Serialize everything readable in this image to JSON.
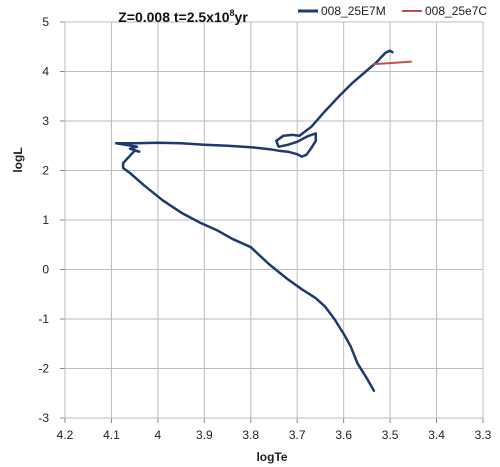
{
  "chart_data": {
    "type": "line",
    "title_parts": [
      "Z=0.008 t=2.5x10",
      "8",
      "yr"
    ],
    "xlabel": "logTe",
    "ylabel": "logL",
    "xlim": [
      4.2,
      3.3
    ],
    "ylim": [
      -3,
      5
    ],
    "x_ticks": [
      4.2,
      4.1,
      4.0,
      3.9,
      3.8,
      3.7,
      3.6,
      3.5,
      3.4,
      3.3
    ],
    "x_tick_labels": [
      "4.2",
      "4.1",
      "4",
      "3.9",
      "3.8",
      "3.7",
      "3.6",
      "3.5",
      "3.4",
      "3.3"
    ],
    "y_ticks": [
      -3,
      -2,
      -1,
      0,
      1,
      2,
      3,
      4,
      5
    ],
    "y_tick_labels": [
      "-3",
      "-2",
      "-1",
      "0",
      "1",
      "2",
      "3",
      "4",
      "5"
    ],
    "grid": true,
    "legend_position": "top-right",
    "series": [
      {
        "name": "008_25E7M",
        "color": "#1f3a6e",
        "x": [
          3.535,
          3.55,
          3.57,
          3.585,
          3.6,
          3.62,
          3.64,
          3.66,
          3.69,
          3.72,
          3.76,
          3.8,
          3.84,
          3.87,
          3.91,
          3.95,
          3.99,
          4.03,
          4.06,
          4.075,
          4.075,
          4.06,
          4.05,
          4.04,
          4.06,
          4.045,
          4.07,
          4.09,
          4.05,
          4.0,
          3.95,
          3.9,
          3.85,
          3.8,
          3.76,
          3.74,
          3.72,
          3.7,
          3.69,
          3.68,
          3.67,
          3.66,
          3.66,
          3.675,
          3.69,
          3.7,
          3.72,
          3.74,
          3.745,
          3.73,
          3.71,
          3.695,
          3.67,
          3.64,
          3.61,
          3.58,
          3.55,
          3.53,
          3.52,
          3.51,
          3.5,
          3.495
        ],
        "y": [
          -2.45,
          -2.2,
          -1.9,
          -1.55,
          -1.3,
          -1.0,
          -0.75,
          -0.58,
          -0.4,
          -0.2,
          0.1,
          0.45,
          0.62,
          0.78,
          0.95,
          1.15,
          1.4,
          1.7,
          1.95,
          2.05,
          2.15,
          2.3,
          2.4,
          2.38,
          2.44,
          2.48,
          2.52,
          2.55,
          2.55,
          2.56,
          2.55,
          2.52,
          2.5,
          2.47,
          2.43,
          2.4,
          2.38,
          2.33,
          2.28,
          2.32,
          2.45,
          2.6,
          2.75,
          2.7,
          2.63,
          2.58,
          2.52,
          2.48,
          2.6,
          2.7,
          2.72,
          2.7,
          2.88,
          3.2,
          3.5,
          3.78,
          4.02,
          4.18,
          4.28,
          4.38,
          4.42,
          4.39
        ]
      },
      {
        "name": "008_25e7C",
        "color": "#c0504d",
        "x": [
          3.535,
          3.5,
          3.455
        ],
        "y": [
          4.15,
          4.17,
          4.2
        ]
      }
    ]
  }
}
